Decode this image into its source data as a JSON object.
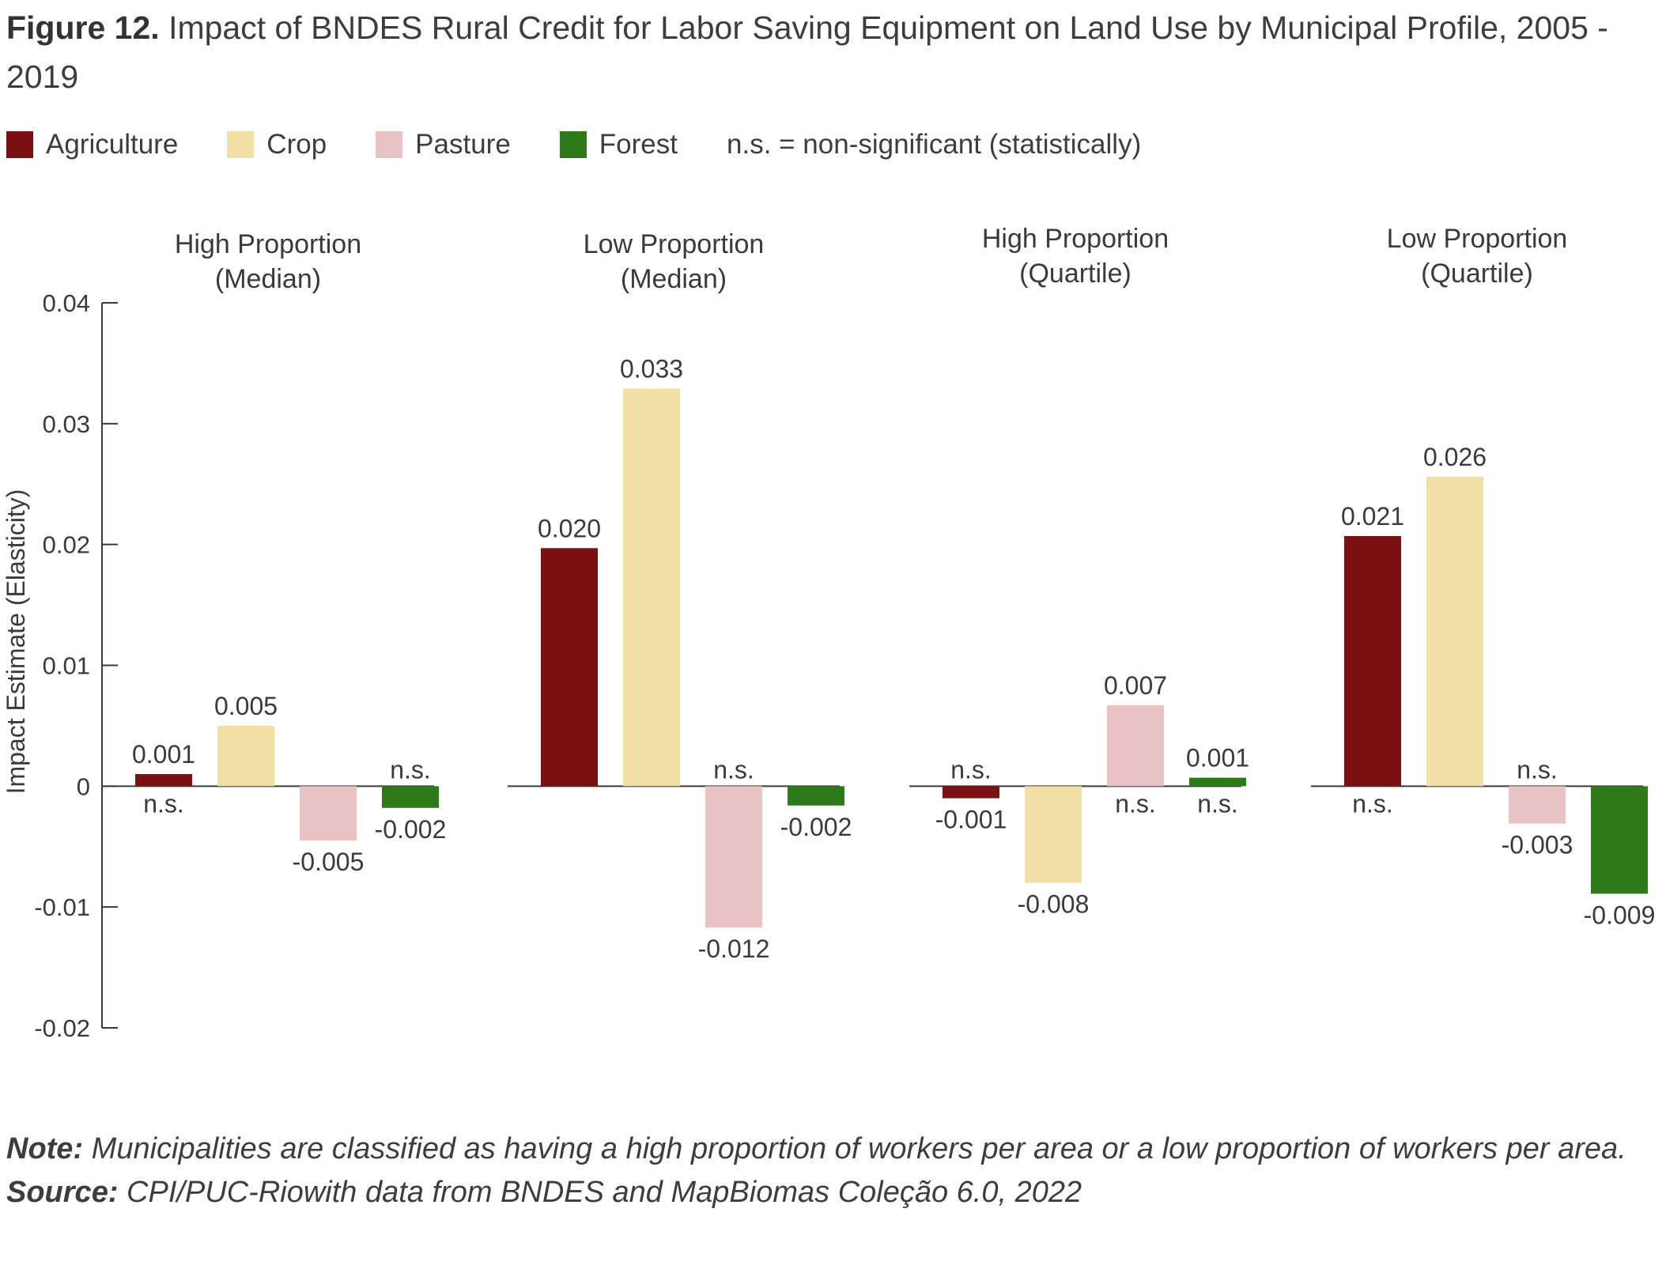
{
  "title": {
    "prefix": "Figure 12.",
    "text": "Impact of BNDES Rural Credit for Labor Saving Equipment on Land Use by Municipal Profile, 2005 - 2019"
  },
  "legend": {
    "items": [
      {
        "label": "Agriculture",
        "color": "#7b1113"
      },
      {
        "label": "Crop",
        "color": "#f2dfa6"
      },
      {
        "label": "Pasture",
        "color": "#e9c3c3"
      },
      {
        "label": "Forest",
        "color": "#2e7a18"
      }
    ],
    "note": "n.s. = non-significant (statistically)"
  },
  "chart_data": {
    "type": "bar",
    "ylabel": "Impact Estimate (Elasticity)",
    "ylim": [
      -0.02,
      0.04
    ],
    "yticks": [
      "0.04",
      "0.03",
      "0.02",
      "0.01",
      "0",
      "-0.01",
      "-0.02"
    ],
    "ytick_values": [
      0.04,
      0.03,
      0.02,
      0.01,
      0,
      -0.01,
      -0.02
    ],
    "series_names": [
      "Agriculture",
      "Crop",
      "Pasture",
      "Forest"
    ],
    "series_colors": [
      "#7b1113",
      "#f2dfa6",
      "#e9c3c3",
      "#2e7a18"
    ],
    "panels": [
      {
        "title_line1": "High Proportion",
        "title_line2": "(Median)",
        "bars": [
          {
            "series": "Agriculture",
            "value": 0.001,
            "label": "0.001",
            "ns": "n.s."
          },
          {
            "series": "Crop",
            "value": 0.005,
            "label": "0.005",
            "ns": ""
          },
          {
            "series": "Pasture",
            "value": -0.0045,
            "label": "-0.005",
            "ns": ""
          },
          {
            "series": "Forest",
            "value": -0.0018,
            "label": "-0.002",
            "ns": "n.s."
          }
        ]
      },
      {
        "title_line1": "Low Proportion",
        "title_line2": "(Median)",
        "bars": [
          {
            "series": "Agriculture",
            "value": 0.0197,
            "label": "0.020",
            "ns": ""
          },
          {
            "series": "Crop",
            "value": 0.0329,
            "label": "0.033",
            "ns": ""
          },
          {
            "series": "Pasture",
            "value": -0.0117,
            "label": "-0.012",
            "ns": "n.s."
          },
          {
            "series": "Forest",
            "value": -0.0016,
            "label": "-0.002",
            "ns": ""
          }
        ]
      },
      {
        "title_line1": "High Proportion",
        "title_line2": "(Quartile)",
        "bars": [
          {
            "series": "Agriculture",
            "value": -0.001,
            "label": "-0.001",
            "ns": "n.s."
          },
          {
            "series": "Crop",
            "value": -0.008,
            "label": "-0.008",
            "ns": ""
          },
          {
            "series": "Pasture",
            "value": 0.0067,
            "label": "0.007",
            "ns": "n.s."
          },
          {
            "series": "Forest",
            "value": 0.0007,
            "label": "0.001",
            "ns": "n.s."
          }
        ]
      },
      {
        "title_line1": "Low Proportion",
        "title_line2": "(Quartile)",
        "bars": [
          {
            "series": "Agriculture",
            "value": 0.0207,
            "label": "0.021",
            "ns": "n.s."
          },
          {
            "series": "Crop",
            "value": 0.0256,
            "label": "0.026",
            "ns": ""
          },
          {
            "series": "Pasture",
            "value": -0.0031,
            "label": "-0.003",
            "ns": "n.s."
          },
          {
            "series": "Forest",
            "value": -0.0089,
            "label": "-0.009",
            "ns": ""
          }
        ]
      }
    ]
  },
  "footer": {
    "note_label": "Note:",
    "note_text": "Municipalities are classified as having a high proportion of workers per area or a low proportion of workers per area.",
    "source_label": "Source:",
    "source_text": "CPI/PUC-Riowith data from BNDES and MapBiomas Coleção 6.0, 2022"
  }
}
